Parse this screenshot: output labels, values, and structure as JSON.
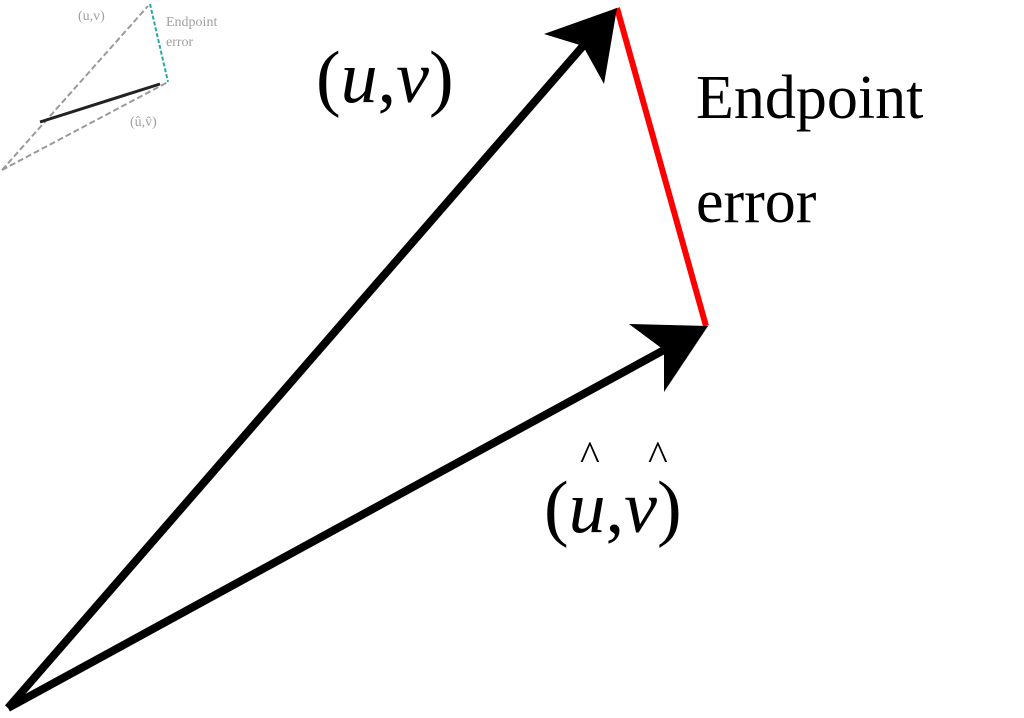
{
  "labels": {
    "true_vector_open": "(",
    "true_vector_u": "u",
    "true_vector_comma": ",",
    "true_vector_v": "v",
    "true_vector_close": ")",
    "est_vector_open": "(",
    "est_vector_u": "u",
    "est_vector_comma": ",",
    "est_vector_v": "v",
    "est_vector_close": ")",
    "hat_symbol": "^",
    "endpoint_line1": "Endpoint",
    "endpoint_line2": "error"
  },
  "colors": {
    "vector": "#000000",
    "error_segment": "#ff0000",
    "thumbnail_error_segment": "#2aa8a8",
    "thumbnail_lines": "#9a9a9a"
  }
}
